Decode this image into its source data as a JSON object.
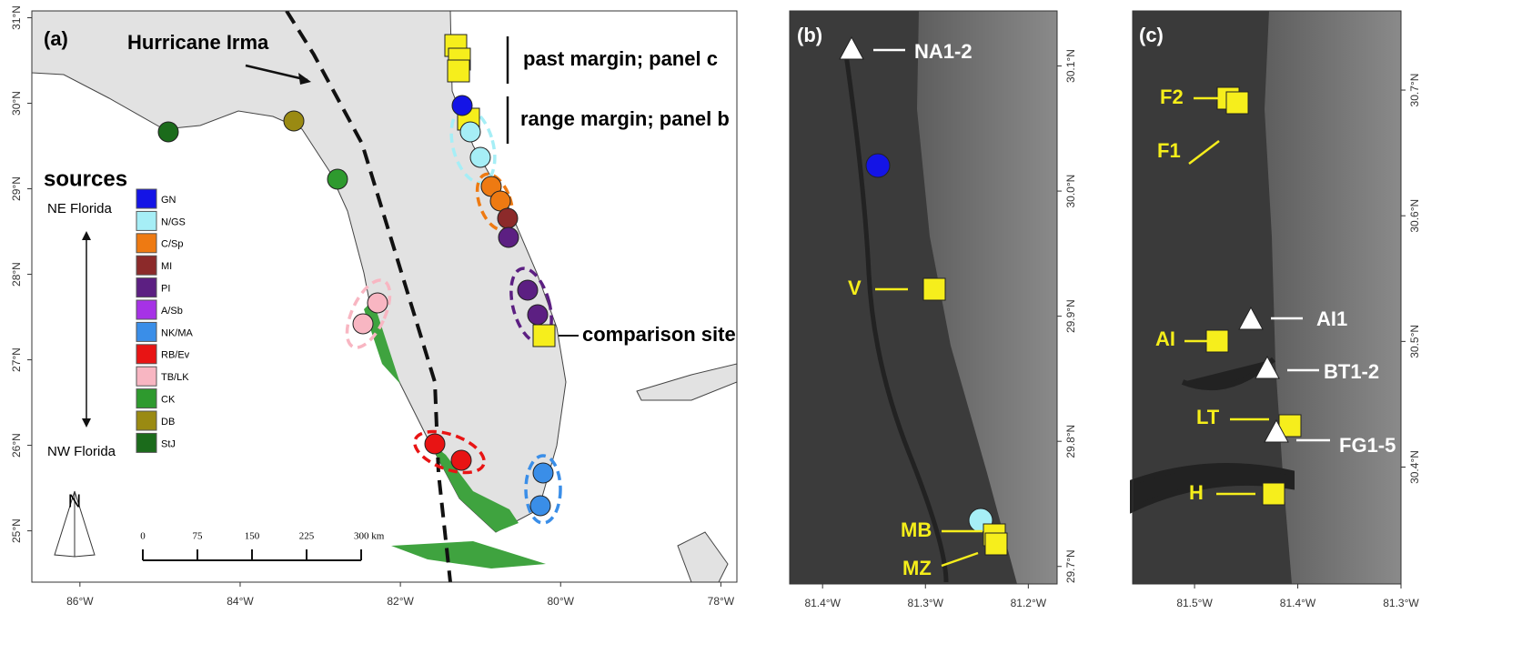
{
  "panel_a": {
    "label": "(a)",
    "hurricane": "Hurricane Irma",
    "past_margin": "past margin; panel c",
    "range_margin": "range margin; panel b",
    "comparison": "comparison site",
    "legend": {
      "title": "sources",
      "top": "NE Florida",
      "bottom": "NW Florida",
      "sources": [
        {
          "name": "GN",
          "color": "#1414e6"
        },
        {
          "name": "N/GS",
          "color": "#a6eef6"
        },
        {
          "name": "C/Sp",
          "color": "#ee7a12"
        },
        {
          "name": "MI",
          "color": "#8c2a2a"
        },
        {
          "name": "PI",
          "color": "#5c1f82"
        },
        {
          "name": "A/Sb",
          "color": "#a632e6"
        },
        {
          "name": "NK/MA",
          "color": "#3a8ee8"
        },
        {
          "name": "RB/Ev",
          "color": "#e81414"
        },
        {
          "name": "TB/LK",
          "color": "#f8b6c2"
        },
        {
          "name": "CK",
          "color": "#2e9a2e"
        },
        {
          "name": "DB",
          "color": "#9a8a12"
        },
        {
          "name": "StJ",
          "color": "#1b6b1b"
        }
      ]
    },
    "north": "N",
    "scale": [
      0,
      75,
      150,
      225,
      {
        "value": 300,
        "label": "300 km"
      }
    ],
    "xlim": [
      -86.6,
      -77.8
    ],
    "xticks": [
      {
        "value": -86,
        "label": "86°W"
      },
      {
        "value": -84,
        "label": "84°W"
      },
      {
        "value": -82,
        "label": "82°W"
      },
      {
        "value": -80,
        "label": "80°W"
      },
      {
        "value": -78,
        "label": "78°W"
      }
    ],
    "ylim": [
      24.4,
      31.08
    ],
    "yticks": [
      {
        "value": 31,
        "label": "31°N"
      },
      {
        "value": 30,
        "label": "30°N"
      },
      {
        "value": 29,
        "label": "29°N"
      },
      {
        "value": 28,
        "label": "28°N"
      },
      {
        "value": 27,
        "label": "27°N"
      },
      {
        "value": 26,
        "label": "26°N"
      },
      {
        "value": 25,
        "label": "25°N"
      }
    ]
  },
  "panel_b": {
    "label": "(b)",
    "sites": [
      "NA1-2",
      "V",
      "MB",
      "MZ"
    ],
    "xlim": [
      -81.432,
      -81.172
    ],
    "xticks": [
      {
        "value": -81.4,
        "label": "81.4°W"
      },
      {
        "value": -81.3,
        "label": "81.3°W"
      },
      {
        "value": -81.2,
        "label": "81.2°W"
      }
    ],
    "ylim": [
      29.686,
      30.144
    ],
    "yticks": [
      {
        "value": 30.1,
        "label": "30.1°N"
      },
      {
        "value": 30.0,
        "label": "30.0°N"
      },
      {
        "value": 29.9,
        "label": "29.9°N"
      },
      {
        "value": 29.8,
        "label": "29.8°N"
      },
      {
        "value": 29.7,
        "label": "29.7°N"
      }
    ]
  },
  "panel_c": {
    "label": "(c)",
    "sites": [
      "F2",
      "F1",
      "AI1",
      "AI",
      "BT1-2",
      "LT",
      "FG1-5",
      "H"
    ],
    "xlim": [
      -81.56,
      -81.3
    ],
    "xticks": [
      {
        "value": -81.5,
        "label": "81.5°W"
      },
      {
        "value": -81.4,
        "label": "81.4°W"
      },
      {
        "value": -81.3,
        "label": "81.3°W"
      }
    ],
    "ylim": [
      30.307,
      30.763
    ],
    "yticks": [
      {
        "value": 30.7,
        "label": "30.7°N"
      },
      {
        "value": 30.6,
        "label": "30.6°N"
      },
      {
        "value": 30.5,
        "label": "30.5°N"
      },
      {
        "value": 30.4,
        "label": "30.4°N"
      }
    ]
  }
}
